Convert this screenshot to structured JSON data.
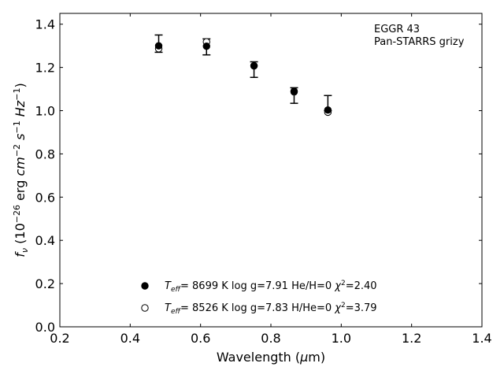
{
  "chart_data": {
    "type": "scatter",
    "xlabel": "Wavelength (μm)",
    "ylabel": "f_ν (10⁻²⁶ erg cm⁻² s⁻¹ Hz⁻¹)",
    "xlim": [
      0.2,
      1.4
    ],
    "ylim": [
      0.0,
      1.45
    ],
    "xticks": [
      "0.2",
      "0.4",
      "0.6",
      "0.8",
      "1.0",
      "1.2",
      "1.4"
    ],
    "yticks": [
      "0.0",
      "0.2",
      "0.4",
      "0.6",
      "0.8",
      "1.0",
      "1.2",
      "1.4"
    ],
    "grid": false,
    "annotation": [
      "EGGR 43",
      "Pan-STARRS grizy"
    ],
    "observed": {
      "x": [
        0.481,
        0.617,
        0.752,
        0.866,
        0.962
      ],
      "y": [
        1.31,
        1.295,
        1.19,
        1.07,
        1.035
      ],
      "yerr": [
        0.04,
        0.037,
        0.036,
        0.036,
        0.035
      ]
    },
    "series": [
      {
        "marker": "filled-circle",
        "legend": "T_eff=  8699 K  log g=7.91  He/H=0  χ²=2.40",
        "x": [
          0.481,
          0.617,
          0.752,
          0.866,
          0.962
        ],
        "y": [
          1.3,
          1.298,
          1.208,
          1.09,
          1.003
        ]
      },
      {
        "marker": "open-circle",
        "legend": "T_eff=  8526 K  log g=7.83  H/He=0  χ²=3.79",
        "x": [
          0.481,
          0.617,
          0.752,
          0.866,
          0.962
        ],
        "y": [
          1.287,
          1.318,
          1.207,
          1.087,
          0.993
        ]
      }
    ],
    "legend_position": "lower-center"
  }
}
